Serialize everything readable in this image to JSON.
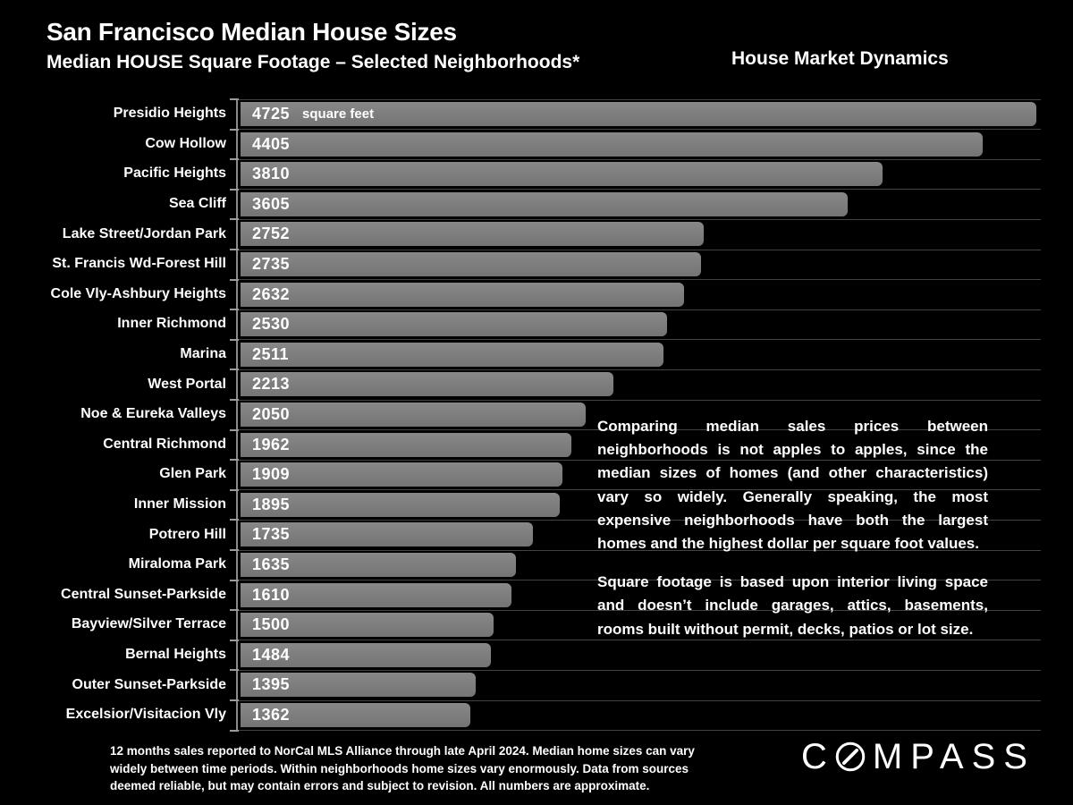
{
  "header": {
    "title": "San Francisco Median House Sizes",
    "subtitle": "Median HOUSE Square Footage – Selected Neighborhoods*",
    "brand": "House Market Dynamics"
  },
  "chart_data": {
    "type": "bar",
    "orientation": "horizontal",
    "title": "Median HOUSE Square Footage – Selected Neighborhoods",
    "unit_label": "square feet",
    "categories": [
      "Presidio Heights",
      "Cow Hollow",
      "Pacific Heights",
      "Sea Cliff",
      "Lake Street/Jordan Park",
      "St. Francis Wd-Forest Hill",
      "Cole Vly-Ashbury Heights",
      "Inner Richmond",
      "Marina",
      "West Portal",
      "Noe & Eureka Valleys",
      "Central Richmond",
      "Glen Park",
      "Inner Mission",
      "Potrero Hill",
      "Miraloma Park",
      "Central Sunset-Parkside",
      "Bayview/Silver Terrace",
      "Bernal Heights",
      "Outer Sunset-Parkside",
      "Excelsior/Visitacion Vly"
    ],
    "values": [
      4725,
      4405,
      3810,
      3605,
      2752,
      2735,
      2632,
      2530,
      2511,
      2213,
      2050,
      1962,
      1909,
      1895,
      1735,
      1635,
      1610,
      1500,
      1484,
      1395,
      1362
    ],
    "xlim": [
      0,
      4725
    ],
    "grid": true,
    "bar_color": "#7d7d7d",
    "gridline_color": "#434343",
    "axis_color": "#8a8a8a",
    "value_label_color": "#ffffff",
    "background": "#000000"
  },
  "commentary": {
    "paragraph1": "Comparing median sales prices between neighborhoods is not apples to apples, since the median sizes of homes (and other characteristics) vary so widely. Generally speaking, the most expensive neighborhoods have both the largest homes and the highest dollar per square foot values.",
    "paragraph2": "Square footage is based upon interior living space and doesn’t include garages, attics, basements, rooms built without permit, decks, patios or lot size."
  },
  "footnote": {
    "lines": [
      "12 months sales reported to NorCal MLS Alliance through late April 2024. Median home sizes can vary",
      "widely between time periods. Within neighborhoods home sizes vary enormously. Data from sources",
      "deemed reliable, but may contain errors and subject to revision. All numbers are approximate."
    ]
  },
  "logo": {
    "name": "COMPASS",
    "letter_before_o": "C",
    "letters_after_o": "MPASS"
  }
}
